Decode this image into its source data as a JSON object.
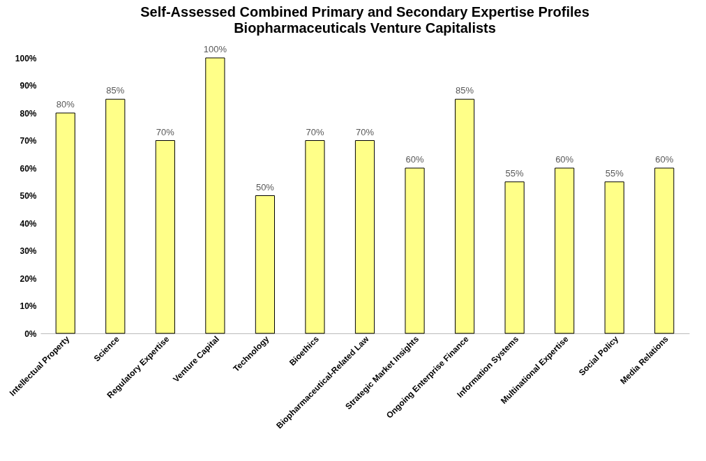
{
  "chart_data": {
    "type": "bar",
    "title": "Self-Assessed Combined Primary and Secondary Expertise Profiles",
    "subtitle": "Biopharmaceuticals Venture Capitalists",
    "categories": [
      "Intellectual Property",
      "Science",
      "Regulatory Expertise",
      "Venture Capital",
      "Technology",
      "Bioethics",
      "Biopharmaceutical-Related Law",
      "Strategic Market Insights",
      "Ongoing Enterprise Finance",
      "Information Systems",
      "Multinational Expertise",
      "Social Policy",
      "Media Relations"
    ],
    "values": [
      80,
      85,
      70,
      100,
      50,
      70,
      70,
      60,
      85,
      55,
      60,
      55,
      60
    ],
    "value_labels": [
      "80%",
      "85%",
      "70%",
      "100%",
      "50%",
      "70%",
      "70%",
      "60%",
      "85%",
      "55%",
      "60%",
      "55%",
      "60%"
    ],
    "color": "#ffff88",
    "ylim": [
      0,
      100
    ],
    "yticks": [
      {
        "value": 0,
        "label": "0%"
      },
      {
        "value": 10,
        "label": "10%"
      },
      {
        "value": 20,
        "label": "20%"
      },
      {
        "value": 30,
        "label": "30%"
      },
      {
        "value": 40,
        "label": "40%"
      },
      {
        "value": 50,
        "label": "50%"
      },
      {
        "value": 60,
        "label": "60%"
      },
      {
        "value": 70,
        "label": "70%"
      },
      {
        "value": 80,
        "label": "80%"
      },
      {
        "value": 90,
        "label": "90%"
      },
      {
        "value": 100,
        "label": "100%"
      }
    ],
    "line_style": "solid"
  }
}
